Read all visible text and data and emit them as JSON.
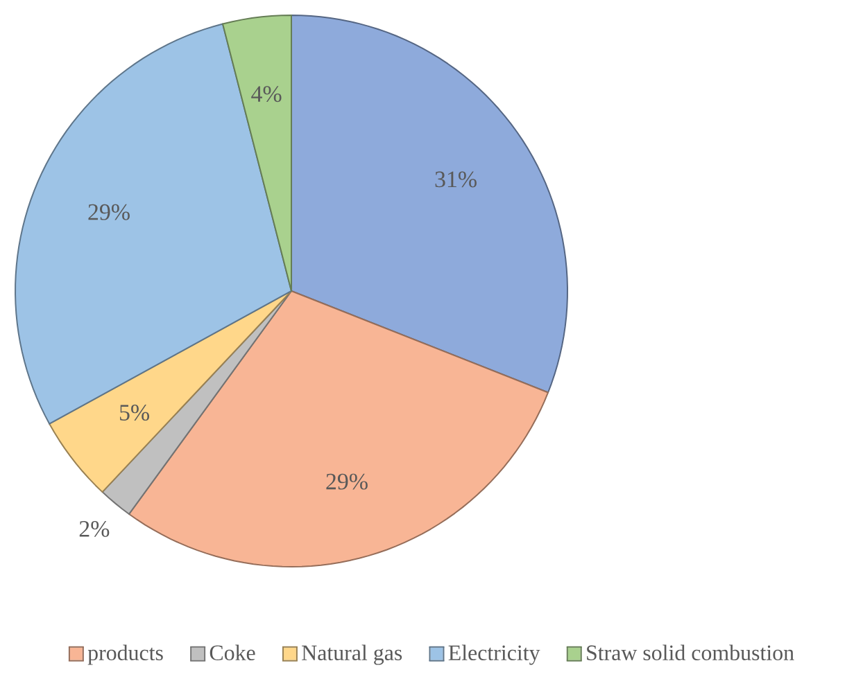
{
  "chart_data": {
    "type": "pie",
    "categories": [
      null,
      "products",
      "Coke",
      "Natural gas",
      "Electricity",
      "Straw solid combustion"
    ],
    "values": [
      31,
      29,
      2,
      5,
      29,
      4
    ],
    "value_labels": [
      "31%",
      "29%",
      "2%",
      "5%",
      "29%",
      "4%"
    ],
    "colors": [
      "#8eaadb",
      "#f8b595",
      "#c0c0c0",
      "#ffd78a",
      "#9dc3e6",
      "#a9d18e"
    ],
    "legend": "bottom"
  }
}
